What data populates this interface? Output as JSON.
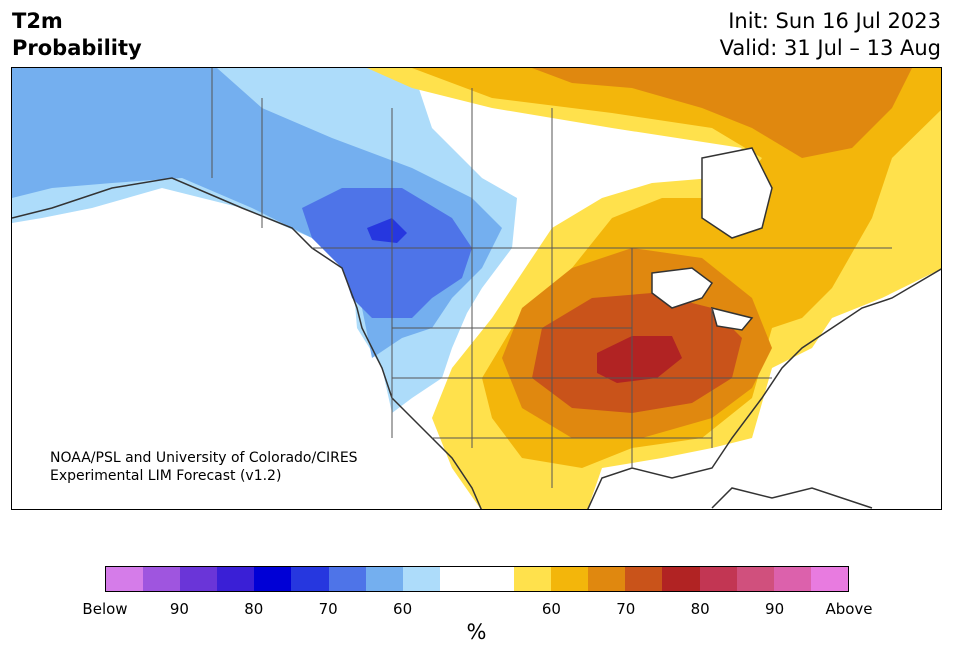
{
  "header": {
    "title": "T2m\nProbability",
    "init": "Init: Sun 16 Jul 2023",
    "valid": "Valid: 31 Jul – 13 Aug"
  },
  "credit": {
    "line1": "NOAA/PSL and University of Colorado/CIRES",
    "line2": "Experimental LIM Forecast (v1.2)"
  },
  "colorbar": {
    "colors": [
      "#d57ce9",
      "#9f55df",
      "#6a35d8",
      "#3a1fd6",
      "#0000d6",
      "#2637df",
      "#4e74e8",
      "#74afef",
      "#addcfa",
      "#ffffff",
      "#ffffff",
      "#ffe14c",
      "#f3b60b",
      "#e0880f",
      "#c9531a",
      "#b12323",
      "#c23653",
      "#d0507d",
      "#dc61ac",
      "#e87be0"
    ],
    "ticks": [
      "Below",
      "90",
      "80",
      "70",
      "60",
      "60",
      "70",
      "80",
      "90",
      "Above"
    ],
    "unit": "%"
  },
  "legend_categories": {
    "below_normal_colors": [
      "#4e74e8",
      "#74afef",
      "#addcfa",
      "#2637df"
    ],
    "above_normal_colors": [
      "#ffe14c",
      "#f3b60b",
      "#e0880f",
      "#c9531a",
      "#b12323"
    ]
  }
}
